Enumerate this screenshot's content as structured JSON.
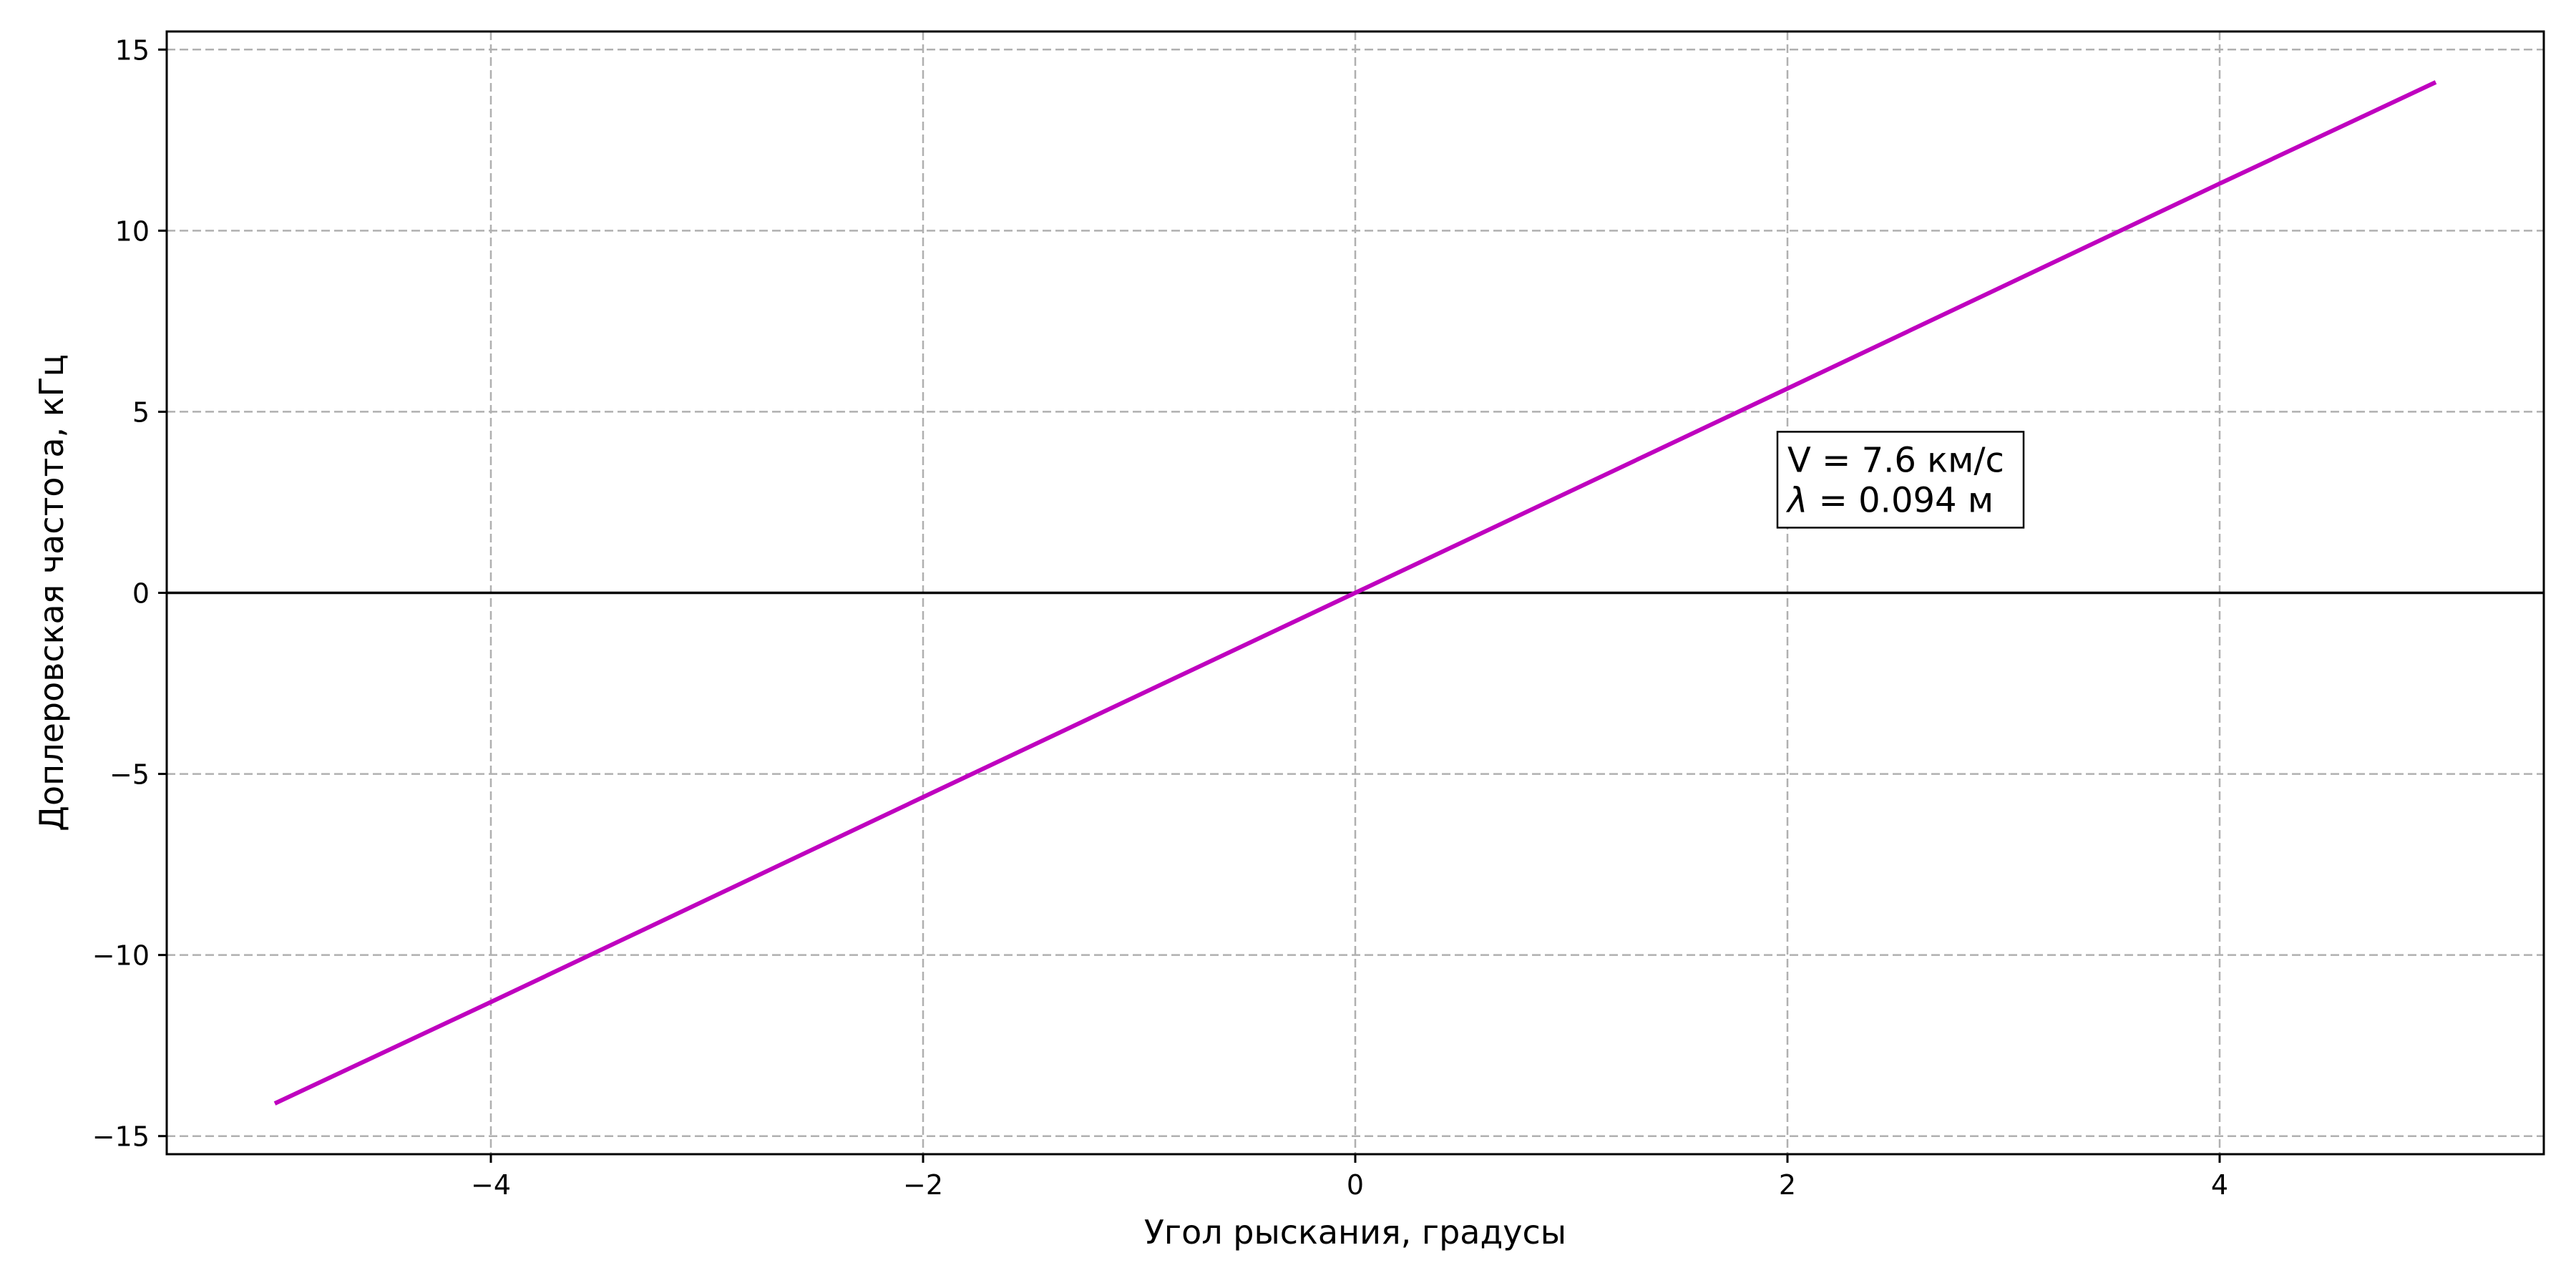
{
  "chart_data": {
    "type": "line",
    "xlabel": "Угол рыскания, градусы",
    "ylabel": "Доплеровская частота, кГц",
    "xlim": [
      -5.5,
      5.5
    ],
    "ylim": [
      -15.5,
      15.5
    ],
    "xticks": [
      -4,
      -2,
      0,
      2,
      4
    ],
    "yticks": [
      -15,
      -10,
      -5,
      0,
      5,
      10,
      15
    ],
    "xtick_labels": [
      "−4",
      "−2",
      "0",
      "2",
      "4"
    ],
    "ytick_labels": [
      "−15",
      "−10",
      "−5",
      "0",
      "5",
      "10",
      "15"
    ],
    "grid": true,
    "zero_line": true,
    "series": [
      {
        "color": "#bf00bf",
        "x": [
          -5,
          -4,
          -3,
          -2,
          -1,
          0,
          1,
          2,
          3,
          4,
          5
        ],
        "y": [
          -14.1,
          -11.3,
          -8.47,
          -5.64,
          -2.82,
          0,
          2.82,
          5.64,
          8.47,
          11.3,
          14.1
        ]
      }
    ],
    "annotation": {
      "line1": "V = 7.6 км/с",
      "line2_symbol": "λ",
      "line2_value": " = 0.094 м"
    }
  }
}
